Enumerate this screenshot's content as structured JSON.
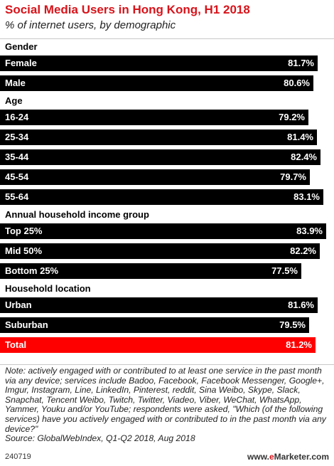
{
  "header": {
    "title": "Social Media Users in Hong Kong, H1 2018",
    "subtitle": "% of internet users, by demographic"
  },
  "chart_data": {
    "type": "bar",
    "orientation": "horizontal",
    "title": "Social Media Users in Hong Kong, H1 2018",
    "subtitle": "% of internet users, by demographic",
    "unit": "%",
    "bar_color": "#000000",
    "highlight_color": "#ff0000",
    "groups": [
      {
        "name": "Gender",
        "items": [
          {
            "label": "Female",
            "value": 81.7,
            "display": "81.7%"
          },
          {
            "label": "Male",
            "value": 80.6,
            "display": "80.6%"
          }
        ]
      },
      {
        "name": "Age",
        "items": [
          {
            "label": "16-24",
            "value": 79.2,
            "display": "79.2%"
          },
          {
            "label": "25-34",
            "value": 81.4,
            "display": "81.4%"
          },
          {
            "label": "35-44",
            "value": 82.4,
            "display": "82.4%"
          },
          {
            "label": "45-54",
            "value": 79.7,
            "display": "79.7%"
          },
          {
            "label": "55-64",
            "value": 83.1,
            "display": "83.1%"
          }
        ]
      },
      {
        "name": "Annual household income group",
        "items": [
          {
            "label": "Top 25%",
            "value": 83.9,
            "display": "83.9%"
          },
          {
            "label": "Mid 50%",
            "value": 82.2,
            "display": "82.2%"
          },
          {
            "label": "Bottom 25%",
            "value": 77.5,
            "display": "77.5%"
          }
        ]
      },
      {
        "name": "Household location",
        "items": [
          {
            "label": "Urban",
            "value": 81.6,
            "display": "81.6%"
          },
          {
            "label": "Suburban",
            "value": 79.5,
            "display": "79.5%"
          }
        ]
      },
      {
        "name": "",
        "items": [
          {
            "label": "Total",
            "value": 81.2,
            "display": "81.2%",
            "highlight": true
          }
        ]
      }
    ]
  },
  "footer": {
    "note": "Note: actively engaged with or contributed to at least one service in the past month via any device; services include Badoo, Facebook, Facebook Messenger, Google+, Imgur, Instagram, Line, LinkedIn, Pinterest, reddit, Sina Weibo, Skype, Slack, Snapchat, Tencent Weibo, Twitch, Twitter, Viadeo, Viber, WeChat, WhatsApp, Yammer, Youku and/or YouTube; respondents were asked, \"Which (of the following services) have you actively engaged with or contributed to in the past month via any device?\"",
    "source": "Source: GlobalWebIndex, Q1-Q2 2018, Aug 2018",
    "id": "240719",
    "brand_prefix": "www.",
    "brand_accent": "e",
    "brand_suffix": "Marketer.com"
  }
}
